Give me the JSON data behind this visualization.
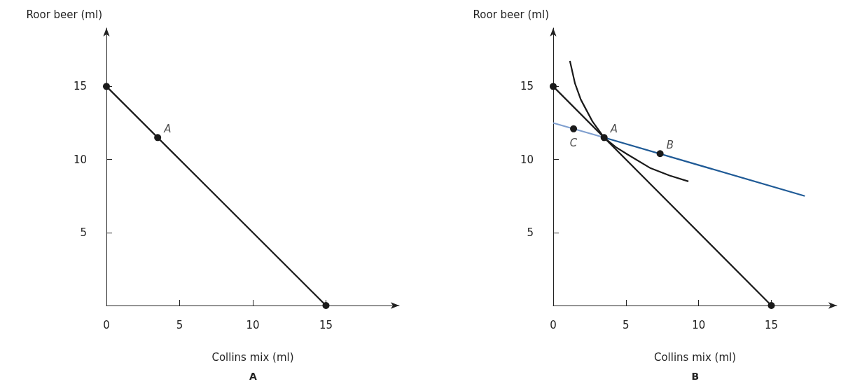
{
  "chart_data": [
    {
      "type": "line",
      "title": "A",
      "xlabel": "Collins mix (ml)",
      "ylabel": "Roor beer (ml)",
      "xlim": [
        0,
        20
      ],
      "ylim": [
        0,
        19
      ],
      "xticks": [
        0,
        5,
        10,
        15
      ],
      "yticks": [
        5,
        10,
        15
      ],
      "marker": "none",
      "series": [
        {
          "color": "#1a1a1a",
          "x": [
            0,
            15
          ],
          "values": [
            15,
            0
          ]
        },
        {
          "type": "scatter",
          "marker": "circle",
          "color": "#1a1a1a",
          "x": [
            0,
            3.5,
            15
          ],
          "values": [
            15,
            11.5,
            0
          ]
        }
      ],
      "annotations": [
        {
          "text": "A",
          "x": 3.5,
          "y": 11.5
        }
      ]
    },
    {
      "type": "line",
      "title": "B",
      "xlabel": "Collins mix (ml)",
      "ylabel": "Roor beer (ml)",
      "xlim": [
        0,
        19.5
      ],
      "ylim": [
        0,
        19
      ],
      "xticks": [
        0,
        5,
        10,
        15
      ],
      "yticks": [
        5,
        10,
        15
      ],
      "marker": "none",
      "series": [
        {
          "color": "#1a1a1a",
          "x": [
            0,
            15
          ],
          "values": [
            15,
            0
          ]
        },
        {
          "color": "#7f9fcf",
          "x": [
            0,
            3.5
          ],
          "values": [
            12.5,
            11.5
          ]
        },
        {
          "color": "#1f5a96",
          "x": [
            3.5,
            17.3
          ],
          "values": [
            11.5,
            7.5
          ]
        },
        {
          "color": "#1a1a1a",
          "x": [
            1.15,
            1.5,
            1.9,
            2.7,
            3.5,
            4.3,
            5.1,
            6.7,
            8.0,
            9.3
          ],
          "values": [
            16.75,
            15.2,
            14.1,
            12.6,
            11.5,
            10.85,
            10.35,
            9.4,
            8.9,
            8.5
          ]
        },
        {
          "type": "scatter",
          "marker": "circle",
          "color": "#1a1a1a",
          "x": [
            0,
            1.4,
            3.5,
            7.35,
            15
          ],
          "values": [
            15,
            12.1,
            11.5,
            10.4,
            0
          ]
        }
      ],
      "annotations": [
        {
          "text": "A",
          "x": 3.5,
          "y": 11.5
        },
        {
          "text": "B",
          "x": 7.35,
          "y": 10.4
        },
        {
          "text": "C",
          "x": 1.4,
          "y": 12.1
        }
      ]
    }
  ]
}
